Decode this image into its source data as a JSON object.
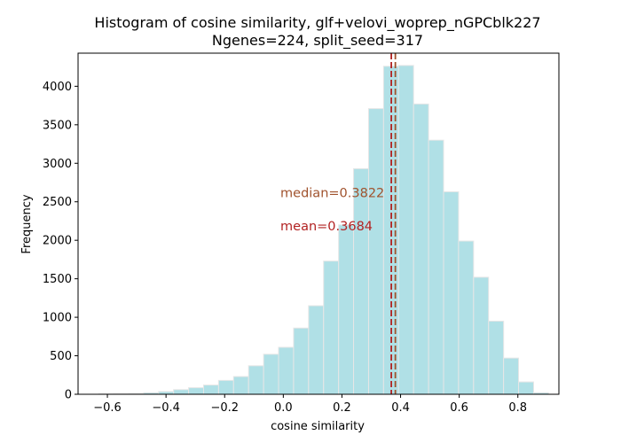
{
  "chart_data": {
    "type": "bar",
    "title": "Histogram of cosine similarity, glf+velovi_woprep_nGPCblk227",
    "subtitle": "Ngenes=224, split_seed=317",
    "xlabel": "cosine similarity",
    "ylabel": "Frequency",
    "xlim": [
      -0.7,
      0.94
    ],
    "ylim": [
      0,
      4430
    ],
    "xticks": [
      "-0.6",
      "-0.4",
      "-0.2",
      "0.0",
      "0.2",
      "0.4",
      "0.6",
      "0.8"
    ],
    "yticks": [
      "0",
      "500",
      "1000",
      "1500",
      "2000",
      "2500",
      "3000",
      "3500",
      "4000"
    ],
    "bin_width": 0.05116,
    "bin_starts": [
      -0.63,
      -0.5788,
      -0.5277,
      -0.4765,
      -0.4254,
      -0.3742,
      -0.323,
      -0.2719,
      -0.2207,
      -0.1696,
      -0.1184,
      -0.0672,
      -0.0161,
      0.0351,
      0.0862,
      0.1374,
      0.1886,
      0.2397,
      0.2909,
      0.342,
      0.3932,
      0.4444,
      0.4955,
      0.5467,
      0.5978,
      0.649,
      0.7002,
      0.7513,
      0.8025,
      0.8536
    ],
    "values": [
      5,
      8,
      12,
      20,
      35,
      60,
      85,
      120,
      180,
      230,
      370,
      520,
      610,
      860,
      1150,
      1730,
      2200,
      2930,
      3710,
      4260,
      4270,
      3770,
      3300,
      2630,
      1990,
      1520,
      950,
      470,
      160,
      20
    ],
    "bar_color": "#b0e0e6",
    "bar_edge_color": "#e6e6e6",
    "lines": [
      {
        "label": "median=0.3822",
        "x": 0.3822,
        "color": "#a0522d"
      },
      {
        "label": "mean=0.3684",
        "x": 0.3684,
        "color": "#b22222"
      }
    ],
    "grid": false
  }
}
